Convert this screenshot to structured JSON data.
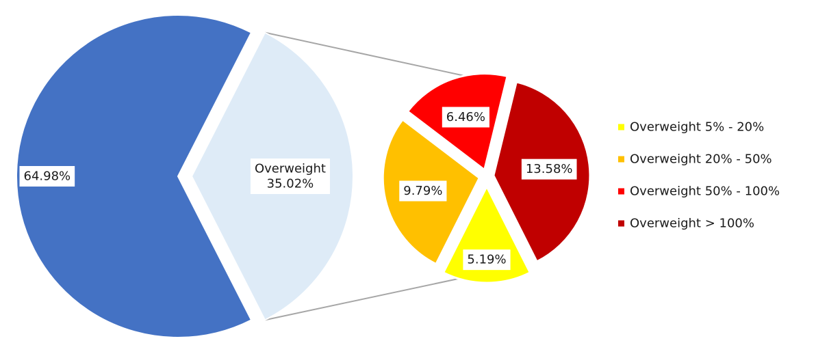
{
  "chart_data": {
    "type": "pie",
    "subtype": "pie-of-pie",
    "main_pie": {
      "slices": [
        {
          "label": "",
          "value": 64.98,
          "value_label": "64.98%",
          "color": "#4472C4"
        },
        {
          "label": "Overweight",
          "value": 35.02,
          "value_label": "35.02%",
          "color": "#DEEBF7"
        }
      ]
    },
    "sub_pie": {
      "parent": "Overweight",
      "slices": [
        {
          "label": "Overweight 5% - 20%",
          "value": 5.19,
          "value_label": "5.19%",
          "color": "#FFFF00"
        },
        {
          "label": "Overweight 20% - 50%",
          "value": 9.79,
          "value_label": "9.79%",
          "color": "#FFC000"
        },
        {
          "label": "Overweight 50% - 100%",
          "value": 6.46,
          "value_label": "6.46%",
          "color": "#FF0000"
        },
        {
          "label": "Overweight > 100%",
          "value": 13.58,
          "value_label": "13.58%",
          "color": "#C00000"
        }
      ]
    },
    "legend": {
      "position": "right",
      "entries": [
        "Overweight 5% - 20%",
        "Overweight 20% - 50%",
        "Overweight 50% - 100%",
        "Overweight > 100%"
      ]
    },
    "connector_color": "#A6A6A6"
  }
}
